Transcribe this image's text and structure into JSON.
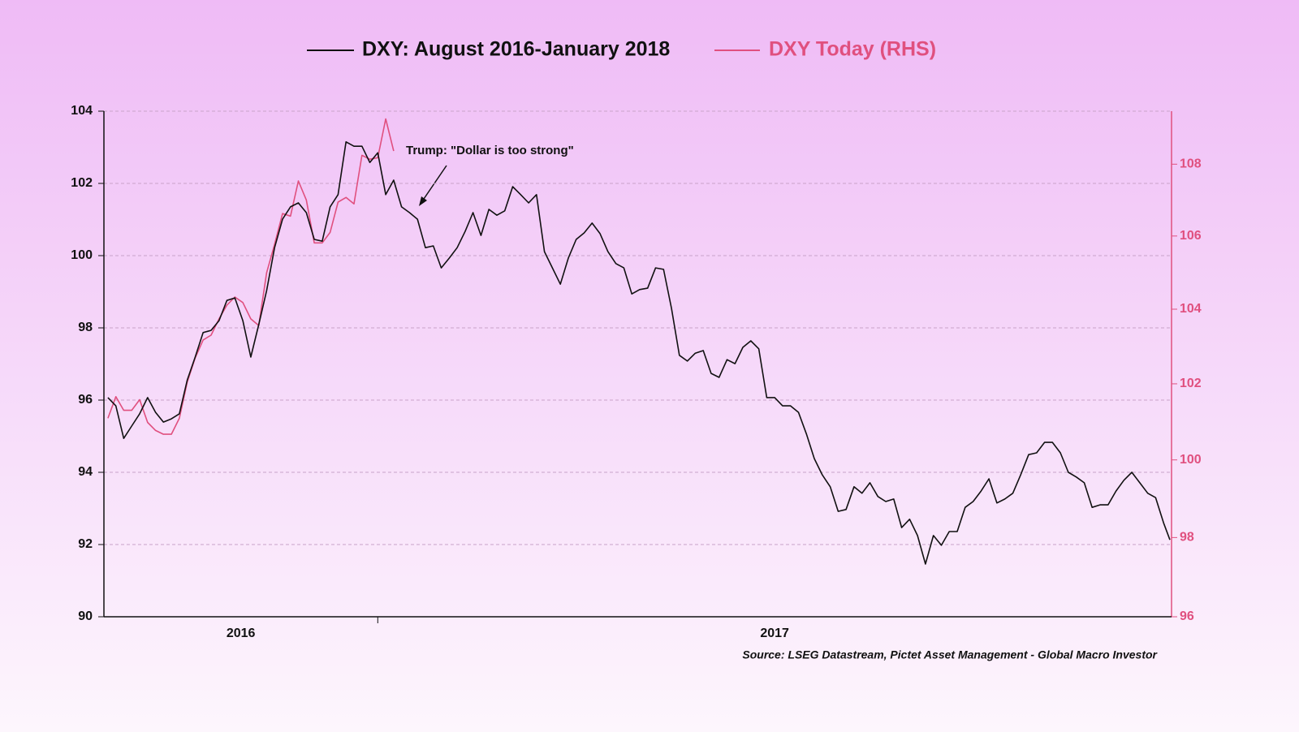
{
  "chart_data": {
    "type": "line",
    "series": [
      {
        "name": "DXY: August 2016-January 2018",
        "color": "#111111",
        "axis": "y",
        "x": [
          2016.66,
          2016.67,
          2016.68,
          2016.69,
          2016.7,
          2016.71,
          2016.72,
          2016.73,
          2016.74,
          2016.75,
          2016.76,
          2016.77,
          2016.78,
          2016.79,
          2016.8,
          2016.81,
          2016.82,
          2016.83,
          2016.84,
          2016.85,
          2016.86,
          2016.87,
          2016.88,
          2016.89,
          2016.9,
          2016.91,
          2016.92,
          2016.93,
          2016.94,
          2016.95,
          2016.96,
          2016.97,
          2016.98,
          2016.99,
          2017.0,
          2017.01,
          2017.02,
          2017.03,
          2017.04,
          2017.05,
          2017.06,
          2017.07,
          2017.08,
          2017.09,
          2017.1,
          2017.11,
          2017.12,
          2017.13,
          2017.14,
          2017.15,
          2017.16,
          2017.17,
          2017.18,
          2017.19,
          2017.2,
          2017.21,
          2017.22,
          2017.23,
          2017.24,
          2017.25,
          2017.26,
          2017.27,
          2017.28,
          2017.29,
          2017.3,
          2017.31,
          2017.32,
          2017.33,
          2017.34,
          2017.35,
          2017.36,
          2017.37,
          2017.38,
          2017.39,
          2017.4,
          2017.41,
          2017.42,
          2017.43,
          2017.44,
          2017.45,
          2017.46,
          2017.47,
          2017.48,
          2017.49,
          2017.5,
          2017.51,
          2017.52,
          2017.53,
          2017.54,
          2017.55,
          2017.56,
          2017.57,
          2017.58,
          2017.59,
          2017.6,
          2017.61,
          2017.62,
          2017.63,
          2017.64,
          2017.65,
          2017.66,
          2017.67,
          2017.68,
          2017.69,
          2017.7,
          2017.71,
          2017.72,
          2017.73,
          2017.74,
          2017.75,
          2017.76,
          2017.77,
          2017.78,
          2017.79,
          2017.8,
          2017.81,
          2017.82,
          2017.83,
          2017.84,
          2017.85,
          2017.86,
          2017.87,
          2017.88,
          2017.89,
          2017.9,
          2017.91,
          2017.92,
          2017.93,
          2017.94,
          2017.95,
          2017.96,
          2017.97,
          2017.98,
          2017.99,
          2017.998
        ],
        "values": [
          96.07,
          95.84,
          94.94,
          95.28,
          95.62,
          96.07,
          95.66,
          95.39,
          95.48,
          95.62,
          96.56,
          97.19,
          97.87,
          97.93,
          98.2,
          98.76,
          98.83,
          98.2,
          97.19,
          98.09,
          99.03,
          100.22,
          101.01,
          101.35,
          101.46,
          101.19,
          100.45,
          100.4,
          101.35,
          101.69,
          103.15,
          103.03,
          103.03,
          102.58,
          102.85,
          101.69,
          102.09,
          101.35,
          101.19,
          101.01,
          100.22,
          100.27,
          99.66,
          99.93,
          100.22,
          100.67,
          101.19,
          100.56,
          101.28,
          101.12,
          101.24,
          101.91,
          101.69,
          101.46,
          101.69,
          100.11,
          99.66,
          99.21,
          99.93,
          100.45,
          100.63,
          100.9,
          100.61,
          100.11,
          99.78,
          99.66,
          98.94,
          99.06,
          99.1,
          99.66,
          99.62,
          98.54,
          97.24,
          97.08,
          97.3,
          97.37,
          96.74,
          96.63,
          97.12,
          97.01,
          97.46,
          97.64,
          97.42,
          96.07,
          96.07,
          95.84,
          95.84,
          95.66,
          95.06,
          94.38,
          93.93,
          93.6,
          92.92,
          92.97,
          93.6,
          93.42,
          93.71,
          93.33,
          93.19,
          93.26,
          92.47,
          92.7,
          92.25,
          91.46,
          92.25,
          91.98,
          92.36,
          92.36,
          93.03,
          93.19,
          93.48,
          93.82,
          93.15,
          93.26,
          93.42,
          93.93,
          94.49,
          94.54,
          94.83,
          94.83,
          94.54,
          94,
          93.87,
          93.71,
          93.03,
          93.1,
          93.1,
          93.48,
          93.78,
          94,
          93.71,
          93.42,
          93.3,
          92.6,
          92.13
        ]
      },
      {
        "name": "DXY Today (RHS)",
        "color": "#e0507f",
        "axis": "y2",
        "x": [
          2016.66,
          2016.67,
          2016.68,
          2016.69,
          2016.7,
          2016.71,
          2016.72,
          2016.73,
          2016.74,
          2016.75,
          2016.76,
          2016.77,
          2016.78,
          2016.79,
          2016.8,
          2016.81,
          2016.82,
          2016.83,
          2016.84,
          2016.85,
          2016.86,
          2016.87,
          2016.88,
          2016.89,
          2016.9,
          2016.91,
          2016.92,
          2016.93,
          2016.94,
          2016.95,
          2016.96,
          2016.97,
          2016.98,
          2016.99,
          2017.0,
          2017.01,
          2017.02
        ],
        "values": [
          101.09,
          101.66,
          101.3,
          101.3,
          101.58,
          100.98,
          100.77,
          100.67,
          100.67,
          101.09,
          102.05,
          102.69,
          103.17,
          103.3,
          103.74,
          104.11,
          104.33,
          104.18,
          103.74,
          103.56,
          104.99,
          105.77,
          106.62,
          106.55,
          107.53,
          107.0,
          105.81,
          105.81,
          106.1,
          106.94,
          107.07,
          106.89,
          108.25,
          108.14,
          108.18,
          109.28,
          108.37
        ]
      }
    ],
    "annotations": [
      {
        "text": "Trump: \"Dollar is too strong\""
      }
    ],
    "source": "Source: LSEG Datastream, Pictet Asset Management - Global Macro Investor",
    "xlim": [
      2016.655,
      2018.0
    ],
    "xticks": [
      2017
    ],
    "x_period_labels": [
      "2016",
      "2017"
    ],
    "ylim": [
      90,
      104
    ],
    "yticks": [
      90,
      92,
      94,
      96,
      98,
      100,
      102,
      104
    ],
    "y2lim": [
      96,
      109.5
    ],
    "y2ticks": [
      96,
      98,
      100,
      102,
      104,
      106,
      108
    ],
    "y2log": true,
    "grid": true
  }
}
